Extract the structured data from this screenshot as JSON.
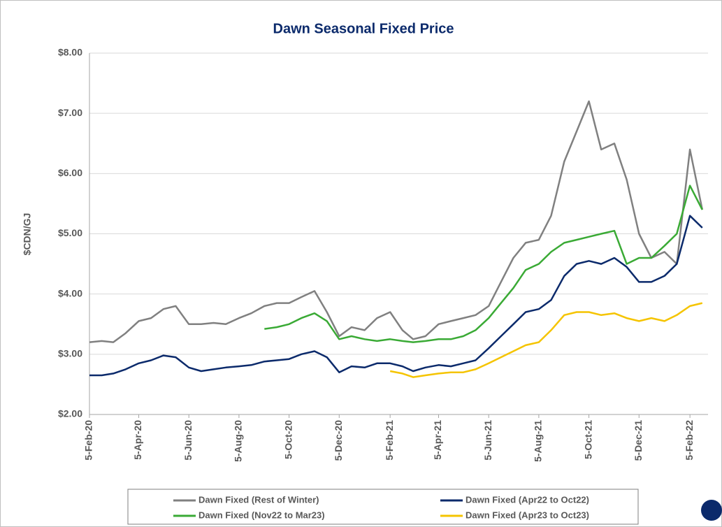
{
  "chart_data": {
    "type": "line",
    "title": "Dawn Seasonal Fixed Price",
    "y_label": "$CDN/GJ",
    "x": [
      "2020-02-05",
      "2020-02-20",
      "2020-03-05",
      "2020-03-20",
      "2020-04-05",
      "2020-04-20",
      "2020-05-05",
      "2020-05-20",
      "2020-06-05",
      "2020-06-20",
      "2020-07-05",
      "2020-07-20",
      "2020-08-05",
      "2020-08-20",
      "2020-09-05",
      "2020-09-20",
      "2020-10-05",
      "2020-10-20",
      "2020-11-05",
      "2020-11-20",
      "2020-12-05",
      "2020-12-20",
      "2021-01-05",
      "2021-01-20",
      "2021-02-05",
      "2021-02-20",
      "2021-03-05",
      "2021-03-20",
      "2021-04-05",
      "2021-04-20",
      "2021-05-05",
      "2021-05-20",
      "2021-06-05",
      "2021-06-20",
      "2021-07-05",
      "2021-07-20",
      "2021-08-05",
      "2021-08-20",
      "2021-09-05",
      "2021-09-20",
      "2021-10-05",
      "2021-10-20",
      "2021-11-05",
      "2021-11-20",
      "2021-12-05",
      "2021-12-20",
      "2022-01-05",
      "2022-01-20",
      "2022-02-05",
      "2022-02-20"
    ],
    "series": [
      {
        "name": "Dawn Fixed (Rest of Winter)",
        "color": "#808080",
        "values": [
          3.2,
          3.22,
          3.2,
          3.35,
          3.55,
          3.6,
          3.75,
          3.8,
          3.5,
          3.5,
          3.52,
          3.5,
          3.6,
          3.68,
          3.8,
          3.85,
          3.85,
          3.95,
          4.05,
          3.7,
          3.3,
          3.45,
          3.4,
          3.6,
          3.7,
          3.4,
          3.25,
          3.3,
          3.5,
          3.55,
          3.6,
          3.65,
          3.8,
          4.2,
          4.6,
          4.85,
          4.9,
          5.3,
          6.2,
          6.7,
          7.2,
          6.4,
          6.5,
          5.9,
          5.0,
          4.6,
          4.7,
          4.5,
          6.4,
          5.4
        ]
      },
      {
        "name": "Dawn Fixed (Apr22 to Oct22)",
        "color": "#0b2a6b",
        "values": [
          2.65,
          2.65,
          2.68,
          2.75,
          2.85,
          2.9,
          2.98,
          2.95,
          2.78,
          2.72,
          2.75,
          2.78,
          2.8,
          2.82,
          2.88,
          2.9,
          2.92,
          3.0,
          3.05,
          2.95,
          2.7,
          2.8,
          2.78,
          2.85,
          2.85,
          2.8,
          2.72,
          2.78,
          2.82,
          2.8,
          2.85,
          2.9,
          3.1,
          3.3,
          3.5,
          3.7,
          3.75,
          3.9,
          4.3,
          4.5,
          4.55,
          4.5,
          4.6,
          4.45,
          4.2,
          4.2,
          4.3,
          4.5,
          5.3,
          5.1
        ]
      },
      {
        "name": "Dawn Fixed (Nov22 to Mar23)",
        "color": "#3aaa35",
        "values": [
          null,
          null,
          null,
          null,
          null,
          null,
          null,
          null,
          null,
          null,
          null,
          null,
          null,
          null,
          3.42,
          3.45,
          3.5,
          3.6,
          3.68,
          3.55,
          3.25,
          3.3,
          3.25,
          3.22,
          3.25,
          3.22,
          3.2,
          3.22,
          3.25,
          3.25,
          3.3,
          3.4,
          3.6,
          3.85,
          4.1,
          4.4,
          4.5,
          4.7,
          4.85,
          4.9,
          4.95,
          5.0,
          5.05,
          4.5,
          4.6,
          4.6,
          4.8,
          5.0,
          5.8,
          5.4
        ]
      },
      {
        "name": "Dawn Fixed (Apr23 to Oct23)",
        "color": "#f5c400",
        "values": [
          null,
          null,
          null,
          null,
          null,
          null,
          null,
          null,
          null,
          null,
          null,
          null,
          null,
          null,
          null,
          null,
          null,
          null,
          null,
          null,
          null,
          null,
          null,
          null,
          2.72,
          2.68,
          2.62,
          2.65,
          2.68,
          2.7,
          2.7,
          2.75,
          2.85,
          2.95,
          3.05,
          3.15,
          3.2,
          3.4,
          3.65,
          3.7,
          3.7,
          3.65,
          3.68,
          3.6,
          3.55,
          3.6,
          3.55,
          3.65,
          3.8,
          3.85
        ]
      }
    ],
    "xlim": [
      "2020-02-05",
      "2022-02-27"
    ],
    "xticks": [
      {
        "value": "2020-02-05",
        "label": "5-Feb-20"
      },
      {
        "value": "2020-04-05",
        "label": "5-Apr-20"
      },
      {
        "value": "2020-06-05",
        "label": "5-Jun-20"
      },
      {
        "value": "2020-08-05",
        "label": "5-Aug-20"
      },
      {
        "value": "2020-10-05",
        "label": "5-Oct-20"
      },
      {
        "value": "2020-12-05",
        "label": "5-Dec-20"
      },
      {
        "value": "2021-02-05",
        "label": "5-Feb-21"
      },
      {
        "value": "2021-04-05",
        "label": "5-Apr-21"
      },
      {
        "value": "2021-06-05",
        "label": "5-Jun-21"
      },
      {
        "value": "2021-08-05",
        "label": "5-Aug-21"
      },
      {
        "value": "2021-10-05",
        "label": "5-Oct-21"
      },
      {
        "value": "2021-12-05",
        "label": "5-Dec-21"
      },
      {
        "value": "2022-02-05",
        "label": "5-Feb-22"
      }
    ],
    "ylim": [
      2,
      8
    ],
    "yticks": [
      {
        "value": 2,
        "label": "$2.00"
      },
      {
        "value": 3,
        "label": "$3.00"
      },
      {
        "value": 4,
        "label": "$4.00"
      },
      {
        "value": 5,
        "label": "$5.00"
      },
      {
        "value": 6,
        "label": "$6.00"
      },
      {
        "value": 7,
        "label": "$7.00"
      },
      {
        "value": 8,
        "label": "$8.00"
      }
    ],
    "grid": true,
    "legend": "bottom"
  }
}
